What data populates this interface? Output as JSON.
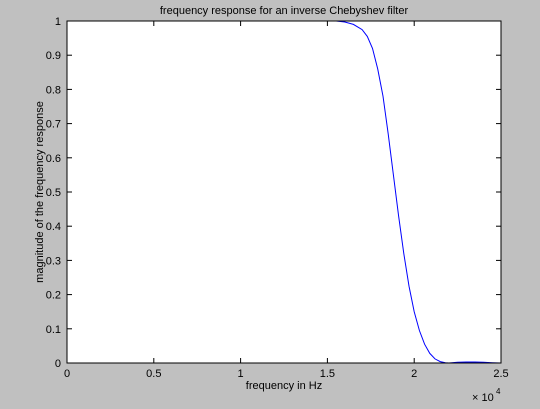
{
  "colors": {
    "figure_bg": "#c0c0c0",
    "axes_bg": "#ffffff",
    "axis": "#000000",
    "line": "#0000ff"
  },
  "chart_data": {
    "type": "line",
    "title": "frequency response for an inverse Chebyshev filter",
    "xlabel": "frequency in Hz",
    "ylabel": "magnitude of the frequency response",
    "x_multiplier_label": "× 10",
    "x_multiplier_exponent": "4",
    "xlim": [
      0,
      25000
    ],
    "ylim": [
      0,
      1
    ],
    "xticks": [
      0,
      5000,
      10000,
      15000,
      20000,
      25000
    ],
    "xtick_labels": [
      "0",
      "0.5",
      "1",
      "1.5",
      "2",
      "2.5"
    ],
    "yticks": [
      0,
      0.1,
      0.2,
      0.3,
      0.4,
      0.5,
      0.6,
      0.7,
      0.8,
      0.9,
      1
    ],
    "ytick_labels": [
      "0",
      "0.1",
      "0.2",
      "0.3",
      "0.4",
      "0.5",
      "0.6",
      "0.7",
      "0.8",
      "0.9",
      "1"
    ],
    "grid": false,
    "series": [
      {
        "x": [
          0,
          5000,
          10000,
          15000,
          15500,
          16000,
          16500,
          17000,
          17300,
          17600,
          17900,
          18200,
          18500,
          18800,
          19100,
          19400,
          19700,
          20000,
          20300,
          20600,
          20900,
          21200,
          21500,
          21800,
          22000,
          22500,
          23000,
          23500,
          24000,
          24500,
          25000
        ],
        "y": [
          1.0,
          1.0,
          1.0,
          1.0,
          1.0,
          0.997,
          0.99,
          0.975,
          0.955,
          0.92,
          0.86,
          0.78,
          0.67,
          0.55,
          0.43,
          0.32,
          0.225,
          0.15,
          0.095,
          0.055,
          0.028,
          0.012,
          0.004,
          0.001,
          0.0,
          0.002,
          0.003,
          0.003,
          0.002,
          0.001,
          0.0
        ]
      }
    ]
  }
}
